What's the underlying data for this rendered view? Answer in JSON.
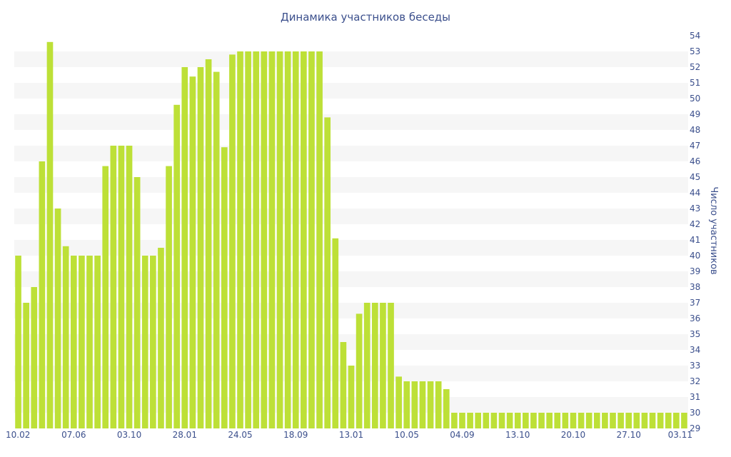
{
  "chart_data": {
    "type": "bar",
    "title": "Динамика участников беседы",
    "xlabel": "",
    "ylabel": "Число участников",
    "ylim": [
      29,
      54
    ],
    "y_axis_side": "right",
    "grid": "alternating horizontal bands",
    "bar_color": "#bde037",
    "text_color": "#3b4f8c",
    "band_color": "#f6f6f6",
    "y_ticks": [
      29,
      30,
      31,
      32,
      33,
      34,
      35,
      36,
      37,
      38,
      39,
      40,
      41,
      42,
      43,
      44,
      45,
      46,
      47,
      48,
      49,
      50,
      51,
      52,
      53,
      54
    ],
    "x_tick_labels": [
      "10.02",
      "07.06",
      "03.10",
      "28.01",
      "24.05",
      "18.09",
      "13.01",
      "10.05",
      "04.09",
      "13.10",
      "20.10",
      "27.10",
      "03.11"
    ],
    "x_tick_positions": [
      0,
      7,
      14,
      21,
      28,
      35,
      42,
      49,
      56,
      63,
      70,
      77,
      84
    ],
    "values": [
      40,
      37,
      38,
      46,
      53.6,
      43,
      40.6,
      40,
      40,
      40,
      40,
      45.7,
      47,
      47,
      47,
      45,
      40,
      40,
      40.5,
      45.7,
      49.6,
      52,
      51.4,
      52,
      52.5,
      51.7,
      46.9,
      52.8,
      53,
      53,
      53,
      53,
      53,
      53,
      53,
      53,
      53,
      53,
      53,
      48.8,
      41.1,
      34.5,
      33,
      36.3,
      37,
      37,
      37,
      37,
      32.3,
      32,
      32,
      32,
      32,
      32,
      31.5,
      30,
      30,
      30,
      30,
      30,
      30,
      30,
      30,
      30,
      30,
      30,
      30,
      30,
      30,
      30,
      30,
      30,
      30,
      30,
      30,
      30,
      30,
      30,
      30,
      30,
      30,
      30,
      30,
      30,
      30
    ]
  }
}
